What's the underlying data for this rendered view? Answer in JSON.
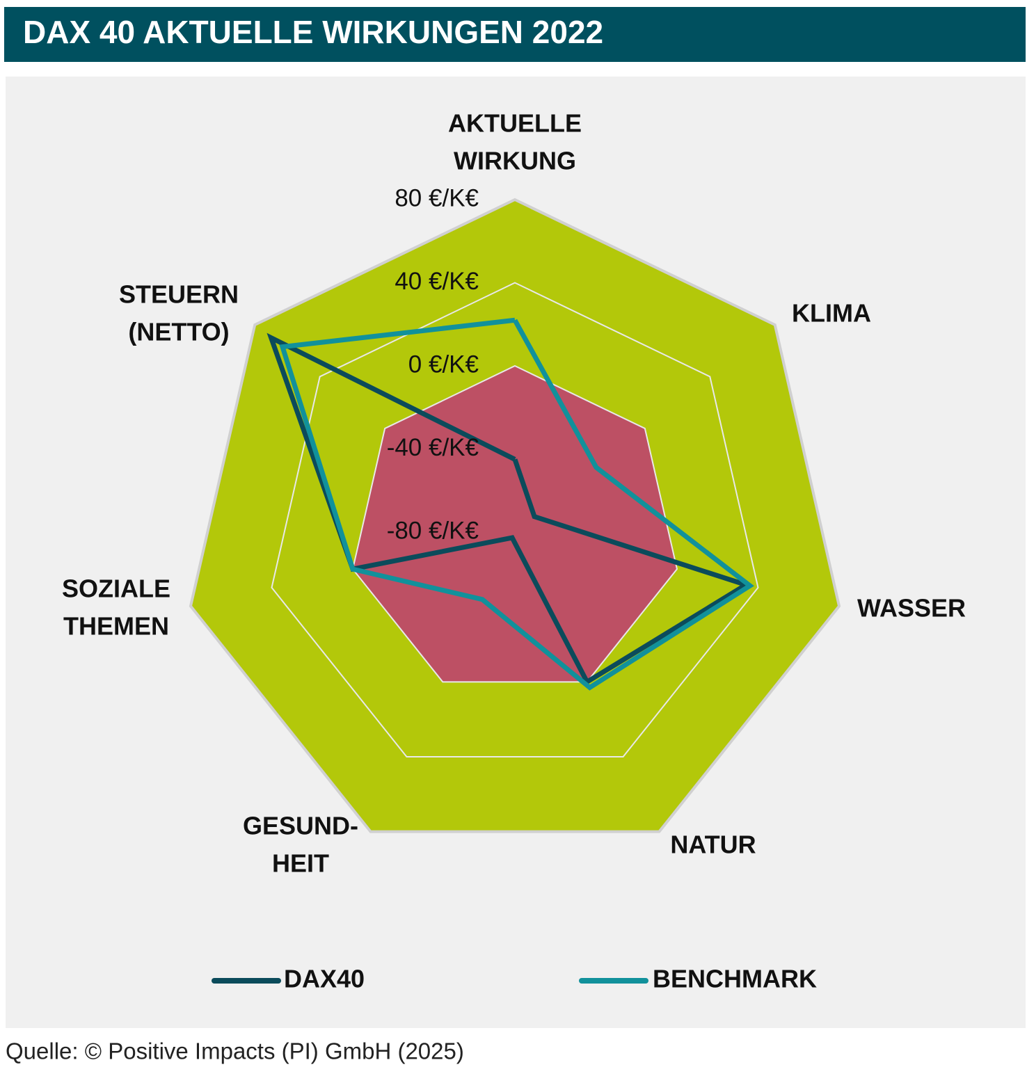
{
  "chart_data": {
    "type": "radar",
    "title": "DAX 40 AKTUELLE WIRKUNGEN 2022",
    "categories": [
      [
        "AKTUELLE",
        "WIRKUNG"
      ],
      [
        "KLIMA"
      ],
      [
        "WASSER"
      ],
      [
        "NATUR"
      ],
      [
        "GESUND-",
        "HEIT"
      ],
      [
        "SOZIALE",
        "THEMEN"
      ],
      [
        "STEUERN",
        "(NETTO)"
      ]
    ],
    "series": [
      {
        "name": "DAX40",
        "color": "#0b4b5b",
        "values": [
          -45,
          -68,
          34,
          0,
          -77,
          0,
          70
        ]
      },
      {
        "name": "BENCHMARK",
        "color": "#11919b",
        "values": [
          22,
          -30,
          36,
          3,
          -44,
          0,
          63
        ]
      }
    ],
    "ylim": [
      -80,
      80
    ],
    "yticks": [
      {
        "value": -80,
        "label": "-80 €/K€"
      },
      {
        "value": -40,
        "label": "-40 €/K€"
      },
      {
        "value": 0,
        "label": "0 €/K€"
      },
      {
        "value": 40,
        "label": "40 €/K€"
      },
      {
        "value": 80,
        "label": "80 €/K€"
      }
    ],
    "source": "Quelle: © Positive Impacts (PI) GmbH (2025)"
  }
}
